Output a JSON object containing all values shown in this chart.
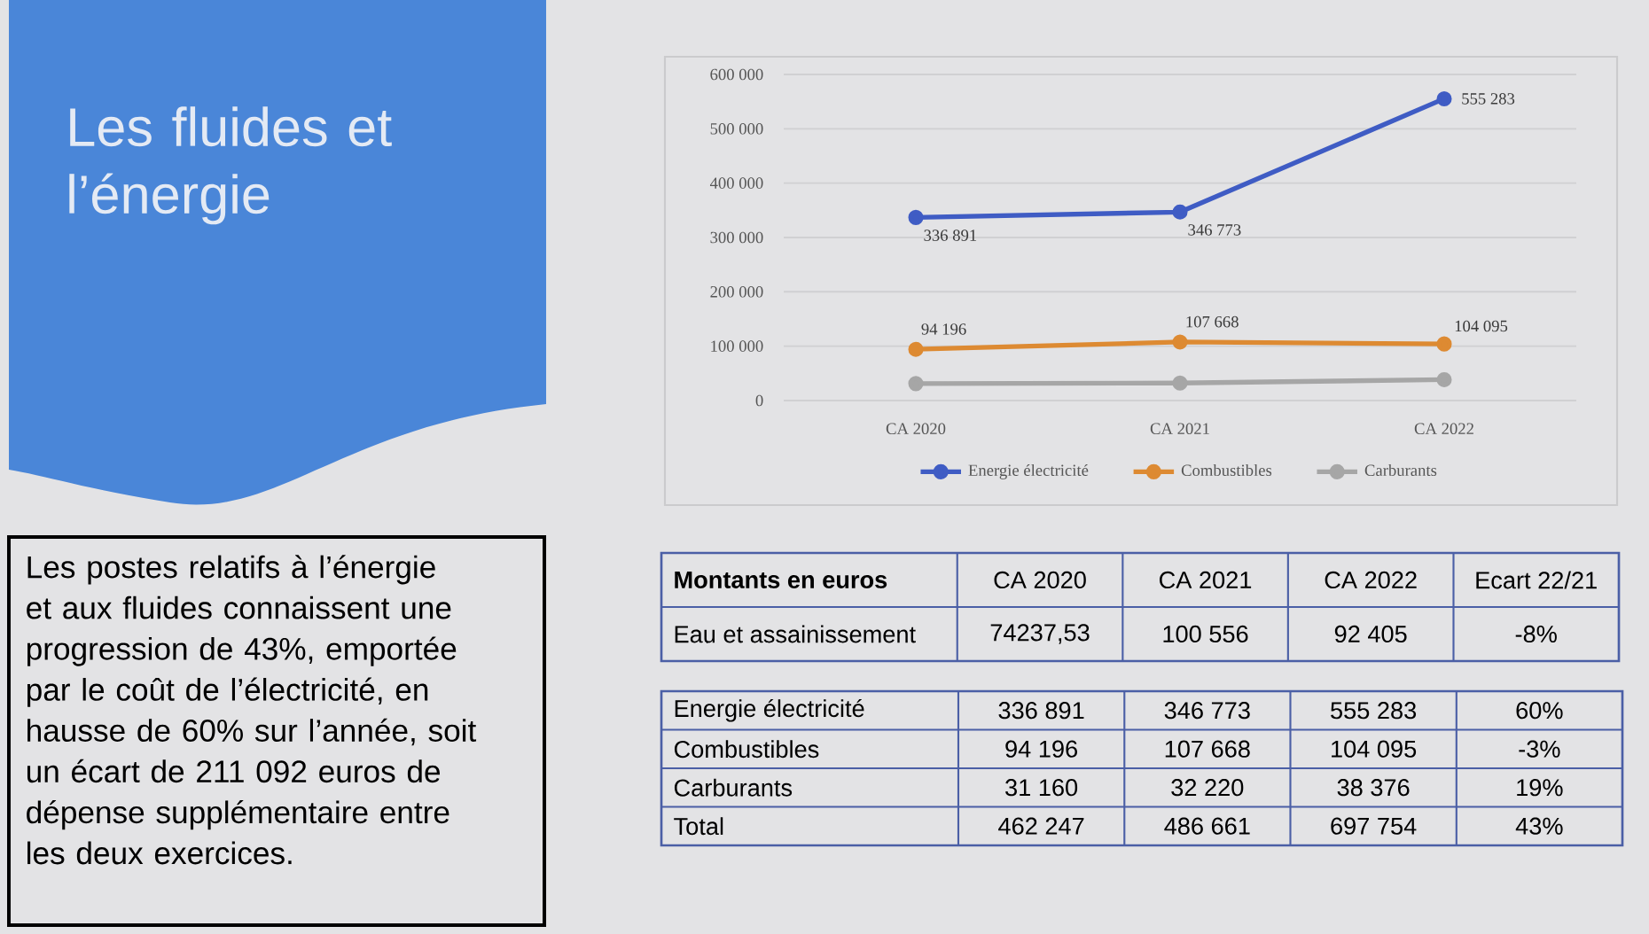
{
  "chart_data": [
    {
      "type": "other",
      "title": "Les fluides et l’énergie",
      "color": "#4a86d8"
    },
    {
      "type": "line",
      "categories": [
        "CA 2020",
        "CA 2021",
        "CA 2022"
      ],
      "series": [
        {
          "name": "Energie électricité",
          "color": "#3f5cc4",
          "values": [
            336891,
            346773,
            555283
          ],
          "value_labels": [
            "336 891",
            "346 773",
            "555 283"
          ]
        },
        {
          "name": "Combustibles",
          "color": "#dd8a32",
          "values": [
            94196,
            107668,
            104095
          ],
          "value_labels": [
            "94 196",
            "107 668",
            "104 095"
          ]
        },
        {
          "name": "Carburants",
          "color": "#a6a6a6",
          "values": [
            31160,
            32220,
            38376
          ]
        }
      ],
      "ylim": [
        0,
        600000
      ],
      "yticks": [
        0,
        {
          "value": 100000,
          "label": "100 000"
        },
        {
          "value": 200000,
          "label": "200 000"
        },
        {
          "value": 300000,
          "label": "300 000"
        },
        {
          "value": 400000,
          "label": "400 000"
        },
        {
          "value": 500000,
          "label": "500 000"
        },
        {
          "value": 600000,
          "label": "600 000"
        }
      ],
      "grid": "y",
      "legend": "bottom",
      "marker": "circle",
      "line_style": "solid"
    },
    {
      "type": "other",
      "annotations": [
        "Les postes relatifs à l’énergie et aux fluides connaissent une progression de 43%, emportée par le coût de l’électricité, en hausse de 60% sur l’année, soit un écart de 211 092 euros de dépense supplémentaire entre les deux exercices."
      ]
    },
    {
      "type": "other",
      "ylabel": "Montants en euros",
      "categories": [
        "CA 2020",
        "CA 2021",
        "CA 2022",
        "Ecart 22/21"
      ],
      "y_categories": [
        "Eau et assainissement"
      ],
      "cell_labels": [
        [
          "74237,53",
          "100 556",
          "92 405",
          "-8%"
        ]
      ]
    },
    {
      "type": "other",
      "y_categories": [
        "Energie électricité",
        "Combustibles",
        "Carburants",
        "Total"
      ],
      "cell_labels": [
        [
          "336 891",
          "346 773",
          "555 283",
          "60%"
        ],
        [
          "94 196",
          "107 668",
          "104 095",
          "-3%"
        ],
        [
          "31 160",
          "32 220",
          "38 376",
          "19%"
        ],
        [
          "462 247",
          "486 661",
          "697 754",
          "43%"
        ]
      ]
    }
  ]
}
